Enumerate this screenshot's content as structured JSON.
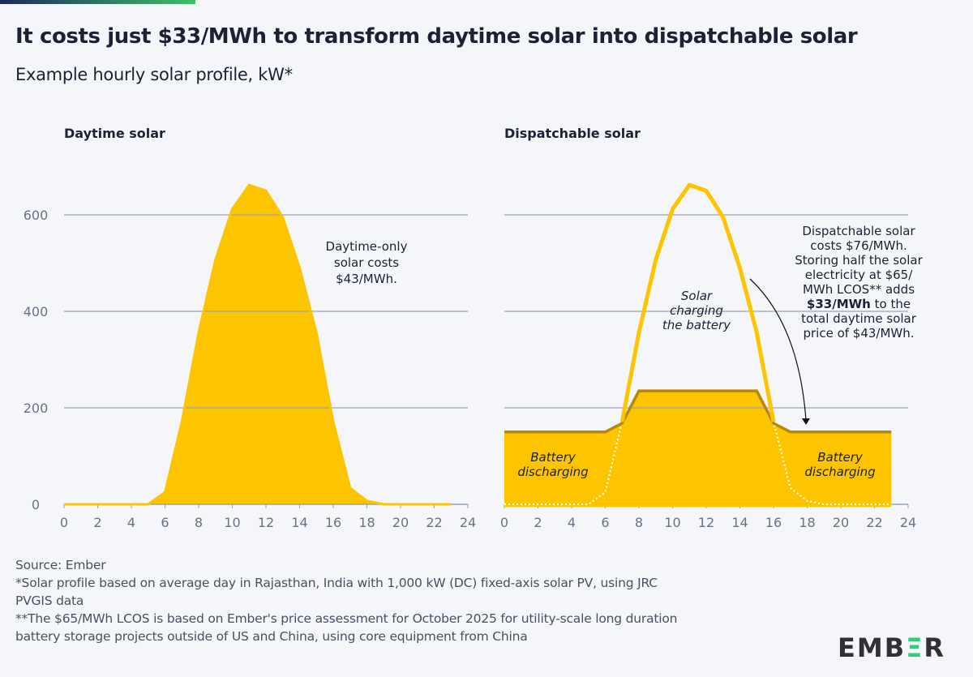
{
  "title": "It costs just $33/MWh to transform daytime solar into dispatchable solar",
  "subtitle": "Example hourly solar profile, kW*",
  "colors": {
    "solar": "#fcc500",
    "dispatch_line": "#b8860b",
    "grid": "#9aa2b4",
    "text": "#1c2233",
    "brand_green": "#2fcf75"
  },
  "chart_data": [
    {
      "type": "area",
      "title": "Daytime solar",
      "x": [
        0,
        1,
        2,
        3,
        4,
        5,
        6,
        7,
        8,
        9,
        10,
        11,
        12,
        13,
        14,
        15,
        16,
        17,
        18,
        19,
        20,
        21,
        22,
        23
      ],
      "series": [
        {
          "values": [
            0,
            0,
            0,
            0,
            0,
            0,
            25,
            171,
            356,
            507,
            612,
            662,
            650,
            595,
            490,
            356,
            171,
            34,
            7,
            0,
            0,
            0,
            0,
            0
          ]
        }
      ],
      "xlim": [
        0,
        24
      ],
      "ylim": [
        0,
        700
      ],
      "xticks": [
        "0",
        "2",
        "4",
        "6",
        "8",
        "10",
        "12",
        "14",
        "16",
        "18",
        "20",
        "22",
        "24"
      ],
      "yticks": [
        "0",
        "200",
        "400",
        "600"
      ],
      "grid": true,
      "annotations": [
        "Daytime-only",
        "solar costs",
        "$43/MWh."
      ]
    },
    {
      "type": "area",
      "title": "Dispatchable solar",
      "x": [
        0,
        1,
        2,
        3,
        4,
        5,
        6,
        7,
        8,
        9,
        10,
        11,
        12,
        13,
        14,
        15,
        16,
        17,
        18,
        19,
        20,
        21,
        22,
        23
      ],
      "series": [
        {
          "values": [
            150,
            150,
            150,
            150,
            150,
            150,
            150,
            168,
            235,
            235,
            235,
            235,
            235,
            235,
            235,
            235,
            168,
            150,
            150,
            150,
            150,
            150,
            150,
            150
          ]
        },
        {
          "values": [
            0,
            0,
            0,
            0,
            0,
            0,
            25,
            171,
            356,
            507,
            612,
            662,
            650,
            595,
            490,
            356,
            171,
            34,
            7,
            0,
            0,
            0,
            0,
            0
          ]
        }
      ],
      "xlim": [
        0,
        24
      ],
      "ylim": [
        0,
        700
      ],
      "xticks": [
        "0",
        "2",
        "4",
        "6",
        "8",
        "10",
        "12",
        "14",
        "16",
        "18",
        "20",
        "22",
        "24"
      ],
      "grid": true,
      "labels": {
        "charging": [
          "Solar",
          "charging",
          "the battery"
        ],
        "discharging_left": [
          "Battery",
          "discharging"
        ],
        "discharging_right": [
          "Battery",
          "discharging"
        ],
        "note": [
          "Dispatchable solar",
          "costs $76/MWh.",
          "Storing half the solar",
          "electricity at $65/",
          "MWh LCOS** adds"
        ],
        "note_bold": "$33/MWh",
        "note_after_bold": " to the",
        "note_tail": [
          "total daytime solar",
          "price of $43/MWh."
        ]
      }
    }
  ],
  "footer": {
    "source": "Source: Ember",
    "note1": "*Solar profile based on average day in Rajasthan, India with 1,000 kW (DC) fixed-axis solar PV, using JRC",
    "note1b": "PVGIS data",
    "note2": "**The $65/MWh LCOS is based on Ember's price assessment for October 2025 for utility-scale long duration",
    "note2b": "battery storage projects outside of US and China, using core equipment from China"
  },
  "logo": "EMBER"
}
